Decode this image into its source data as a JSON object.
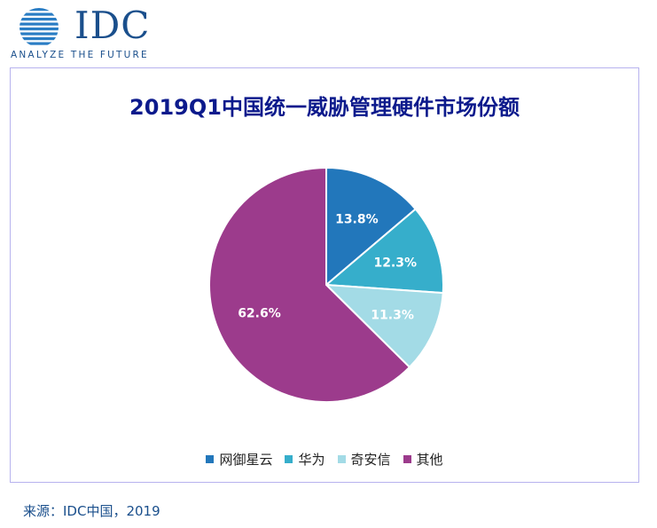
{
  "logo": {
    "brand": "IDC",
    "tagline": "ANALYZE THE FUTURE",
    "globe_icon": "globe-stripes-icon",
    "color": "#1a4f8c"
  },
  "chart_data": {
    "type": "pie",
    "title": "2019Q1中国统一威胁管理硬件市场份额",
    "categories": [
      "网御星云",
      "华为",
      "奇安信",
      "其他"
    ],
    "values": [
      13.8,
      12.3,
      11.3,
      62.6
    ],
    "labels": [
      "13.8%",
      "12.3%",
      "11.3%",
      "62.6%"
    ],
    "unit": "%",
    "colors": [
      "#2277bb",
      "#36aecb",
      "#a3dbe6",
      "#9c3b8c"
    ],
    "legend_position": "bottom",
    "start_angle": "12 o'clock",
    "direction": "clockwise"
  },
  "source": "来源：IDC中国，2019"
}
